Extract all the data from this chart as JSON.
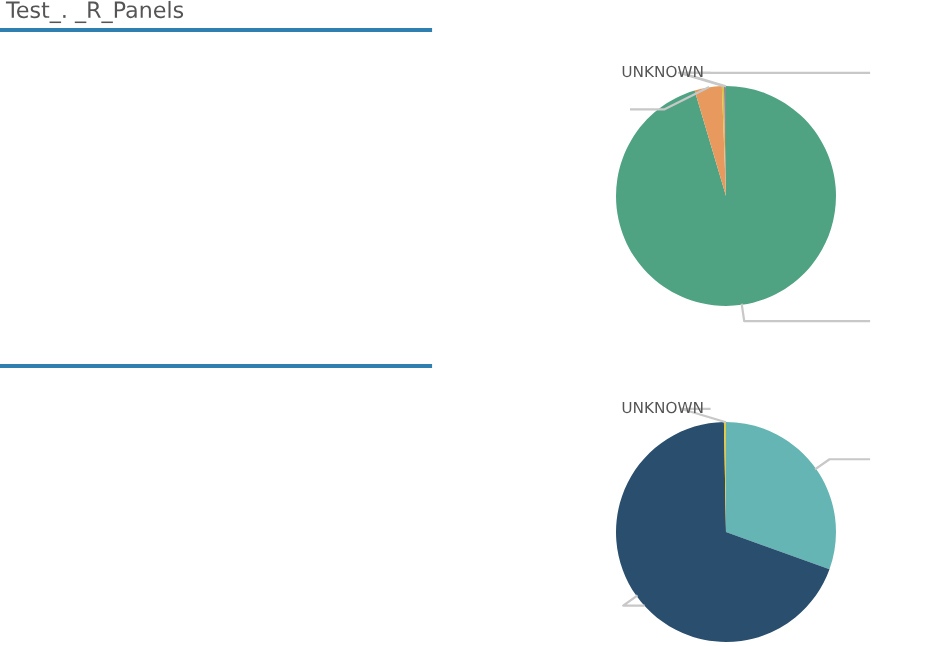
{
  "chart_data": [
    {
      "type": "other",
      "title": "Test_. _R_Panels"
    },
    {
      "type": "pie",
      "categories": [
        null,
        null,
        "UNKNOWN",
        null
      ],
      "values": [
        95.4,
        4.0,
        0.3,
        0.3
      ],
      "colors": [
        "#4fa383",
        "#e89a5e",
        "#d9c24a",
        "#8c8c8c"
      ]
    },
    {
      "type": "pie",
      "categories": [
        null,
        null,
        "UNKNOWN"
      ],
      "values": [
        30.5,
        69.2,
        0.3
      ],
      "colors": [
        "#64b5b3",
        "#2a4e6e",
        "#e0c840"
      ]
    }
  ]
}
